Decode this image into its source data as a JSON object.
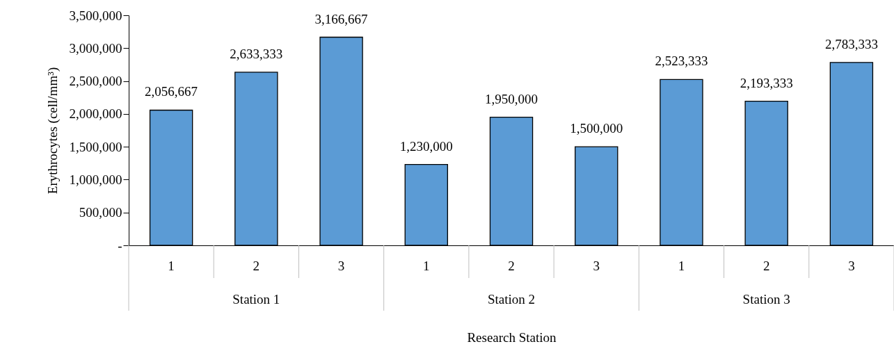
{
  "chart_data": {
    "type": "bar",
    "xlabel": "Research Station",
    "ylabel": "Erythrocytes (cell/mm³)",
    "categories": [
      "1",
      "2",
      "3",
      "1",
      "2",
      "3",
      "1",
      "2",
      "3"
    ],
    "values": [
      2056667,
      2633333,
      3166667,
      1230000,
      1950000,
      1500000,
      2523333,
      2193333,
      2783333
    ],
    "value_labels": [
      "2,056,667",
      "2,633,333",
      "3,166,667",
      "1,230,000",
      "1,950,000",
      "1,500,000",
      "2,523,333",
      "2,193,333",
      "2,783,333"
    ],
    "color": "#5b9bd5",
    "ylim": [
      0,
      3500000
    ],
    "yticks": [
      {
        "value": 0,
        "label": "-"
      },
      {
        "value": 500000,
        "label": "500,000"
      },
      {
        "value": 1000000,
        "label": "1,000,000"
      },
      {
        "value": 1500000,
        "label": "1,500,000"
      },
      {
        "value": 2000000,
        "label": "2,000,000"
      },
      {
        "value": 2500000,
        "label": "2,500,000"
      },
      {
        "value": 3000000,
        "label": "3,000,000"
      },
      {
        "value": 3500000,
        "label": "3,500,000"
      }
    ],
    "grid": false,
    "annotations": [
      "Station 1",
      "Station 2",
      "Station 3"
    ]
  }
}
